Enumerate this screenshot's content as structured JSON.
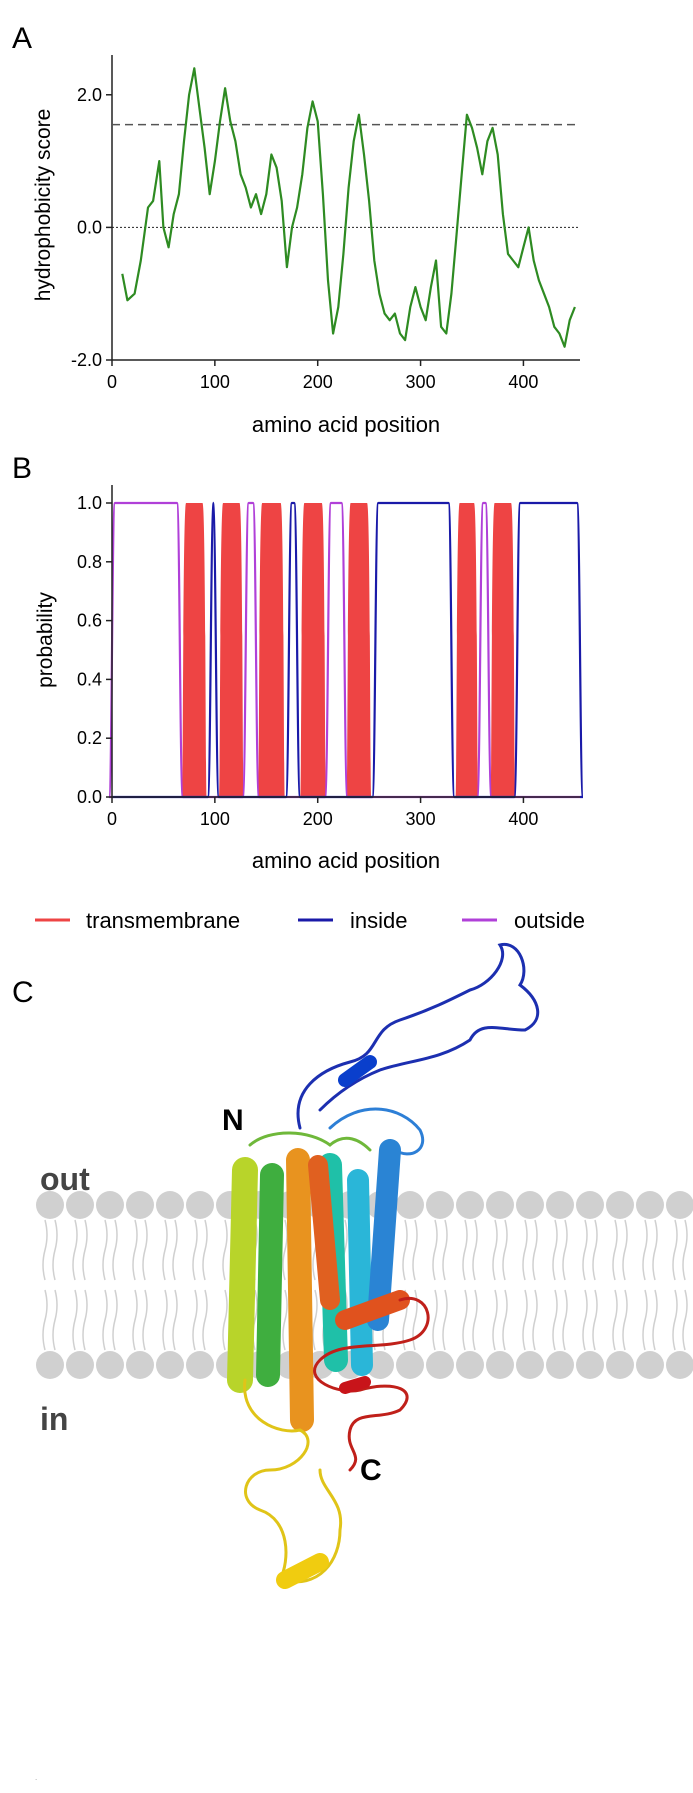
{
  "panels": {
    "a": {
      "letter": "A"
    },
    "b": {
      "letter": "B"
    },
    "c": {
      "letter": "C",
      "label_n": "N",
      "label_c": "C",
      "label_out": "out",
      "label_in": "in"
    }
  },
  "colors": {
    "hydrophobicity": "#2e8b22",
    "transmembrane": "#ee4444",
    "inside": "#1a1aa8",
    "outside": "#b040d8",
    "membrane": "#d0d0d0"
  },
  "chart_data": [
    {
      "type": "line",
      "xlabel": "amino acid position",
      "ylabel": "hydrophobicity score",
      "xlim": [
        0,
        455
      ],
      "ylim": [
        -2.0,
        2.6
      ],
      "xticks": [
        "0",
        "100",
        "200",
        "300",
        "400"
      ],
      "yticks": [
        "2.0",
        "0.0",
        "-2.0"
      ],
      "threshold": 1.55,
      "zero_line": 0.0,
      "series": [
        {
          "x": [
            10,
            15,
            22,
            28,
            35,
            40,
            46,
            50,
            55,
            60,
            65,
            70,
            75,
            80,
            85,
            90,
            95,
            100,
            105,
            110,
            115,
            120,
            125,
            130,
            135,
            140,
            145,
            150,
            155,
            160,
            165,
            170,
            175,
            180,
            185,
            190,
            195,
            200,
            205,
            210,
            215,
            220,
            225,
            230,
            235,
            240,
            245,
            250,
            255,
            260,
            265,
            270,
            275,
            280,
            285,
            290,
            295,
            300,
            305,
            310,
            315,
            320,
            325,
            330,
            335,
            340,
            345,
            350,
            355,
            360,
            365,
            370,
            375,
            380,
            385,
            390,
            395,
            400,
            405,
            410,
            415,
            420,
            425,
            430,
            435,
            440,
            445,
            450
          ],
          "values": [
            -0.7,
            -1.1,
            -1.0,
            -0.5,
            0.3,
            0.4,
            1.0,
            0.0,
            -0.3,
            0.2,
            0.5,
            1.3,
            2.0,
            2.4,
            1.8,
            1.2,
            0.5,
            1.0,
            1.6,
            2.1,
            1.6,
            1.3,
            0.8,
            0.6,
            0.3,
            0.5,
            0.2,
            0.5,
            1.1,
            0.9,
            0.4,
            -0.6,
            0.0,
            0.3,
            0.8,
            1.5,
            1.9,
            1.6,
            0.5,
            -0.8,
            -1.6,
            -1.2,
            -0.4,
            0.6,
            1.3,
            1.7,
            1.1,
            0.4,
            -0.5,
            -1.0,
            -1.3,
            -1.4,
            -1.3,
            -1.6,
            -1.7,
            -1.2,
            -0.9,
            -1.2,
            -1.4,
            -0.9,
            -0.5,
            -1.5,
            -1.6,
            -1.0,
            -0.1,
            0.8,
            1.7,
            1.5,
            1.2,
            0.8,
            1.3,
            1.5,
            1.1,
            0.2,
            -0.4,
            -0.5,
            -0.6,
            -0.3,
            0.0,
            -0.5,
            -0.8,
            -1.0,
            -1.2,
            -1.5,
            -1.6,
            -1.8,
            -1.4,
            -1.2
          ]
        }
      ]
    },
    {
      "type": "area",
      "xlabel": "amino acid position",
      "ylabel": "probability",
      "xlim": [
        0,
        455
      ],
      "ylim": [
        0,
        1.0
      ],
      "xticks": [
        "0",
        "100",
        "200",
        "300",
        "400"
      ],
      "yticks": [
        "0.0",
        "0.2",
        "0.4",
        "0.6",
        "0.8",
        "1.0"
      ],
      "legend_position": "bottom",
      "legend": [
        {
          "name": "transmembrane",
          "color": "#ee4444"
        },
        {
          "name": "inside",
          "color": "#1a1aa8"
        },
        {
          "name": "outside",
          "color": "#b040d8"
        }
      ],
      "transmembrane_segments": [
        [
          68,
          92
        ],
        [
          104,
          128
        ],
        [
          142,
          168
        ],
        [
          183,
          208
        ],
        [
          228,
          252
        ],
        [
          334,
          356
        ],
        [
          368,
          392
        ]
      ],
      "inside_segments": [
        [
          96,
          101
        ],
        [
          172,
          180
        ],
        [
          256,
          330
        ],
        [
          394,
          455
        ]
      ],
      "outside_segments": [
        [
          0,
          66
        ],
        [
          130,
          140
        ],
        [
          210,
          226
        ],
        [
          358,
          366
        ]
      ]
    }
  ]
}
